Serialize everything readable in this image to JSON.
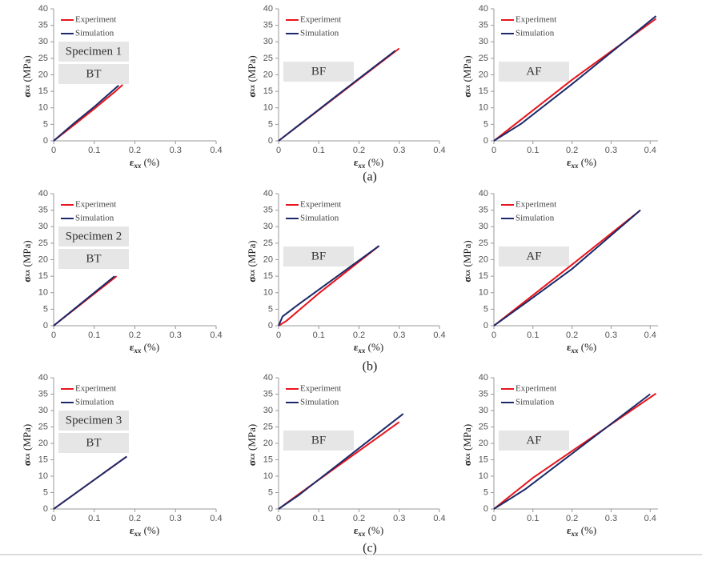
{
  "chart_data": [
    {
      "type": "line",
      "xlim": [
        0,
        0.4
      ],
      "ylim": [
        0,
        40
      ],
      "xticks": [
        0,
        0.1,
        0.2,
        0.3,
        0.4
      ],
      "yticks": [
        0,
        5,
        10,
        15,
        20,
        25,
        30,
        35,
        40
      ],
      "xlabel": {
        "symbol": "ε",
        "subscript": "xx",
        "unit": "(%)"
      },
      "ylabel": {
        "symbol": "σ",
        "subscript": "xx",
        "unit": "(MPa)"
      },
      "annotations": [
        "Specimen 1",
        "BT"
      ],
      "series": [
        {
          "name": "Experiment",
          "color": "#e8141b",
          "x": [
            0,
            0.05,
            0.1,
            0.15,
            0.17
          ],
          "values": [
            0,
            4.8,
            9.7,
            14.8,
            17
          ]
        },
        {
          "name": "Simulation",
          "color": "#1b2a6b",
          "x": [
            0,
            0.05,
            0.1,
            0.16
          ],
          "values": [
            0,
            5.3,
            10.3,
            16.8
          ]
        }
      ]
    },
    {
      "type": "line",
      "xlim": [
        0,
        0.4
      ],
      "ylim": [
        0,
        40
      ],
      "xticks": [
        0,
        0.1,
        0.2,
        0.3,
        0.4
      ],
      "yticks": [
        0,
        5,
        10,
        15,
        20,
        25,
        30,
        35,
        40
      ],
      "xlabel": {
        "symbol": "ε",
        "subscript": "xx",
        "unit": "(%)"
      },
      "ylabel": {
        "symbol": "σ",
        "subscript": "xx",
        "unit": "(MPa)"
      },
      "annotations": [
        "BF"
      ],
      "series": [
        {
          "name": "Experiment",
          "color": "#e8141b",
          "x": [
            0,
            0.15,
            0.3
          ],
          "values": [
            0,
            14,
            28
          ]
        },
        {
          "name": "Simulation",
          "color": "#1b2a6b",
          "x": [
            0,
            0.15,
            0.29
          ],
          "values": [
            0,
            14.2,
            27.3
          ]
        }
      ]
    },
    {
      "type": "line",
      "xlim": [
        0,
        0.42
      ],
      "ylim": [
        0,
        40
      ],
      "xticks": [
        0,
        0.1,
        0.2,
        0.3,
        0.4
      ],
      "yticks": [
        0,
        5,
        10,
        15,
        20,
        25,
        30,
        35,
        40
      ],
      "xlabel": {
        "symbol": "ε",
        "subscript": "xx",
        "unit": "(%)"
      },
      "ylabel": {
        "symbol": "σ",
        "subscript": "xx",
        "unit": "(MPa)"
      },
      "annotations": [
        "AF"
      ],
      "series": [
        {
          "name": "Experiment",
          "color": "#e8141b",
          "x": [
            0,
            0.2,
            0.415
          ],
          "values": [
            0,
            18.5,
            37
          ]
        },
        {
          "name": "Simulation",
          "color": "#1b2a6b",
          "x": [
            0,
            0.07,
            0.2,
            0.415
          ],
          "values": [
            0,
            5.2,
            17.2,
            37.8
          ]
        }
      ]
    },
    {
      "type": "line",
      "xlim": [
        0,
        0.4
      ],
      "ylim": [
        0,
        40
      ],
      "xticks": [
        0,
        0.1,
        0.2,
        0.3,
        0.4
      ],
      "yticks": [
        0,
        5,
        10,
        15,
        20,
        25,
        30,
        35,
        40
      ],
      "xlabel": {
        "symbol": "ε",
        "subscript": "xx",
        "unit": "(%)"
      },
      "ylabel": {
        "symbol": "σ",
        "subscript": "xx",
        "unit": "(MPa)"
      },
      "annotations": [
        "Specimen 2",
        "BT"
      ],
      "series": [
        {
          "name": "Experiment",
          "color": "#e8141b",
          "x": [
            0,
            0.155
          ],
          "values": [
            0,
            15
          ]
        },
        {
          "name": "Simulation",
          "color": "#1b2a6b",
          "x": [
            0,
            0.15
          ],
          "values": [
            0,
            15
          ]
        }
      ]
    },
    {
      "type": "line",
      "xlim": [
        0,
        0.4
      ],
      "ylim": [
        0,
        40
      ],
      "xticks": [
        0,
        0.1,
        0.2,
        0.3,
        0.4
      ],
      "yticks": [
        0,
        5,
        10,
        15,
        20,
        25,
        30,
        35,
        40
      ],
      "xlabel": {
        "symbol": "ε",
        "subscript": "xx",
        "unit": "(%)"
      },
      "ylabel": {
        "symbol": "σ",
        "subscript": "xx",
        "unit": "(MPa)"
      },
      "annotations": [
        "BF"
      ],
      "series": [
        {
          "name": "Experiment",
          "color": "#e8141b",
          "x": [
            0,
            0.02,
            0.1,
            0.25
          ],
          "values": [
            0,
            1.5,
            9.8,
            24.2
          ]
        },
        {
          "name": "Simulation",
          "color": "#1b2a6b",
          "x": [
            0,
            0.01,
            0.05,
            0.25
          ],
          "values": [
            0,
            2.8,
            6.5,
            24.2
          ]
        }
      ]
    },
    {
      "type": "line",
      "xlim": [
        0,
        0.42
      ],
      "ylim": [
        0,
        40
      ],
      "xticks": [
        0,
        0.1,
        0.2,
        0.3,
        0.4
      ],
      "yticks": [
        0,
        5,
        10,
        15,
        20,
        25,
        30,
        35,
        40
      ],
      "xlabel": {
        "symbol": "ε",
        "subscript": "xx",
        "unit": "(%)"
      },
      "ylabel": {
        "symbol": "σ",
        "subscript": "xx",
        "unit": "(MPa)"
      },
      "annotations": [
        "AF"
      ],
      "series": [
        {
          "name": "Experiment",
          "color": "#e8141b",
          "x": [
            0,
            0.2,
            0.375
          ],
          "values": [
            0,
            18.5,
            35
          ]
        },
        {
          "name": "Simulation",
          "color": "#1b2a6b",
          "x": [
            0,
            0.08,
            0.2,
            0.375
          ],
          "values": [
            0,
            6.8,
            17.2,
            35
          ]
        }
      ]
    },
    {
      "type": "line",
      "xlim": [
        0,
        0.4
      ],
      "ylim": [
        0,
        40
      ],
      "xticks": [
        0,
        0.1,
        0.2,
        0.3,
        0.4
      ],
      "yticks": [
        0,
        5,
        10,
        15,
        20,
        25,
        30,
        35,
        40
      ],
      "xlabel": {
        "symbol": "ε",
        "subscript": "xx",
        "unit": "(%)"
      },
      "ylabel": {
        "symbol": "σ",
        "subscript": "xx",
        "unit": "(MPa)"
      },
      "annotations": [
        "Specimen 3",
        "BT"
      ],
      "series": [
        {
          "name": "Experiment",
          "color": "#e8141b",
          "x": [
            0,
            0.18
          ],
          "values": [
            0,
            16
          ]
        },
        {
          "name": "Simulation",
          "color": "#1b2a6b",
          "x": [
            0,
            0.18
          ],
          "values": [
            0,
            16
          ]
        }
      ]
    },
    {
      "type": "line",
      "xlim": [
        0,
        0.4
      ],
      "ylim": [
        0,
        40
      ],
      "xticks": [
        0,
        0.1,
        0.2,
        0.3,
        0.4
      ],
      "yticks": [
        0,
        5,
        10,
        15,
        20,
        25,
        30,
        35,
        40
      ],
      "xlabel": {
        "symbol": "ε",
        "subscript": "xx",
        "unit": "(%)"
      },
      "ylabel": {
        "symbol": "σ",
        "subscript": "xx",
        "unit": "(MPa)"
      },
      "annotations": [
        "BF"
      ],
      "series": [
        {
          "name": "Experiment",
          "color": "#e8141b",
          "x": [
            0,
            0.05,
            0.3
          ],
          "values": [
            0,
            4.5,
            26.5
          ]
        },
        {
          "name": "Simulation",
          "color": "#1b2a6b",
          "x": [
            0,
            0.05,
            0.31
          ],
          "values": [
            0,
            4.2,
            29
          ]
        }
      ]
    },
    {
      "type": "line",
      "xlim": [
        0,
        0.42
      ],
      "ylim": [
        0,
        40
      ],
      "xticks": [
        0,
        0.1,
        0.2,
        0.3,
        0.4
      ],
      "yticks": [
        0,
        5,
        10,
        15,
        20,
        25,
        30,
        35,
        40
      ],
      "xlabel": {
        "symbol": "ε",
        "subscript": "xx",
        "unit": "(%)"
      },
      "ylabel": {
        "symbol": "σ",
        "subscript": "xx",
        "unit": "(MPa)"
      },
      "annotations": [
        "AF"
      ],
      "series": [
        {
          "name": "Experiment",
          "color": "#e8141b",
          "x": [
            0,
            0.1,
            0.415
          ],
          "values": [
            0,
            9.5,
            35.2
          ]
        },
        {
          "name": "Simulation",
          "color": "#1b2a6b",
          "x": [
            0,
            0.08,
            0.4
          ],
          "values": [
            0,
            6,
            35
          ]
        }
      ]
    }
  ],
  "captions": [
    "(a)",
    "(b)",
    "(c)"
  ]
}
